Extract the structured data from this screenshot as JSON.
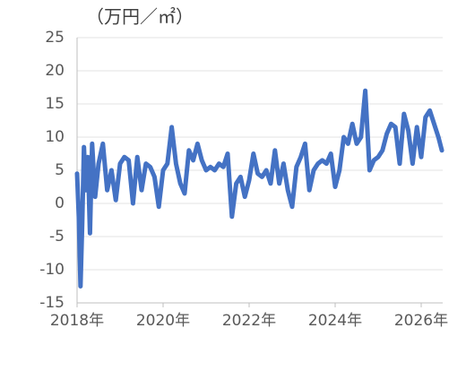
{
  "chart_data": {
    "type": "line",
    "y_label": "（万円／㎡）",
    "x": [
      2018.0,
      2018.04,
      2018.08,
      2018.12,
      2018.16,
      2018.2,
      2018.25,
      2018.3,
      2018.35,
      2018.42,
      2018.5,
      2018.6,
      2018.7,
      2018.8,
      2018.9,
      2019.0,
      2019.1,
      2019.2,
      2019.3,
      2019.4,
      2019.5,
      2019.6,
      2019.7,
      2019.8,
      2019.9,
      2020.0,
      2020.1,
      2020.2,
      2020.3,
      2020.4,
      2020.5,
      2020.6,
      2020.7,
      2020.8,
      2020.9,
      2021.0,
      2021.1,
      2021.2,
      2021.3,
      2021.4,
      2021.5,
      2021.6,
      2021.7,
      2021.8,
      2021.9,
      2022.0,
      2022.1,
      2022.2,
      2022.3,
      2022.4,
      2022.5,
      2022.6,
      2022.7,
      2022.8,
      2022.9,
      2023.0,
      2023.1,
      2023.2,
      2023.3,
      2023.4,
      2023.5,
      2023.6,
      2023.7,
      2023.8,
      2023.9,
      2024.0,
      2024.1,
      2024.2,
      2024.3,
      2024.4,
      2024.5,
      2024.6,
      2024.7,
      2024.8,
      2024.9,
      2025.0,
      2025.1,
      2025.2,
      2025.3,
      2025.4,
      2025.5,
      2025.6,
      2025.7,
      2025.8,
      2025.9,
      2026.0,
      2026.1,
      2026.2,
      2026.3,
      2026.4,
      2026.48
    ],
    "series": [
      {
        "color": "#4472c4",
        "values": [
          4.5,
          -2,
          -12.5,
          -3,
          8.5,
          2,
          7,
          -4.5,
          9,
          1,
          6,
          9,
          2,
          5,
          0.5,
          6,
          7,
          6.5,
          0,
          7,
          2,
          6,
          5.5,
          4,
          -0.5,
          5,
          6,
          11.5,
          6,
          3,
          1.5,
          8,
          6.5,
          9,
          6.5,
          5,
          5.5,
          5,
          6,
          5.5,
          7.5,
          -2,
          3,
          4,
          1,
          3.5,
          7.5,
          4.5,
          4,
          5,
          3,
          8,
          3,
          6,
          2,
          -0.5,
          5.5,
          7,
          9,
          2,
          5,
          6,
          6.5,
          6,
          7.5,
          2.5,
          5,
          10,
          9,
          12,
          9,
          10,
          17,
          5,
          6.5,
          7,
          8,
          10.5,
          12,
          11.5,
          6,
          13.5,
          11,
          6,
          11.5,
          7,
          13,
          14,
          12,
          10,
          8
        ]
      }
    ],
    "xlim": [
      2018,
      2026.5
    ],
    "xticks": [
      {
        "value": 2018,
        "label": "2018年"
      },
      {
        "value": 2020,
        "label": "2020年"
      },
      {
        "value": 2022,
        "label": "2022年"
      },
      {
        "value": 2024,
        "label": "2024年"
      },
      {
        "value": 2026,
        "label": "2026年"
      }
    ],
    "ylim": [
      -15,
      25
    ],
    "yticks": [
      -15,
      -10,
      -5,
      0,
      5,
      10,
      15,
      20,
      25
    ],
    "grid": true
  }
}
